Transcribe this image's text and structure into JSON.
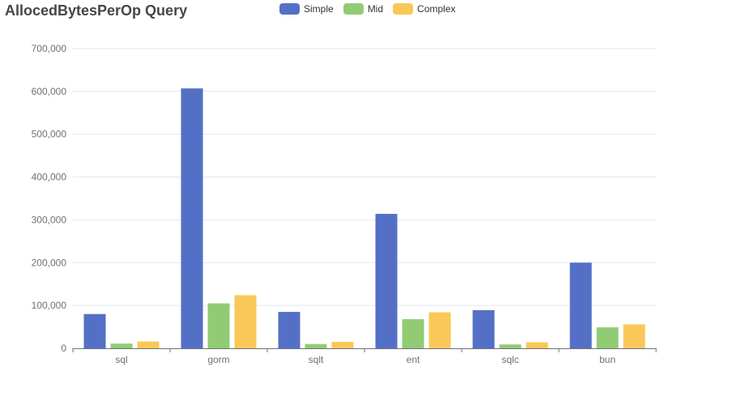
{
  "chart_data": {
    "type": "bar",
    "title": "AllocedBytesPerOp Query",
    "categories": [
      "sql",
      "gorm",
      "sqlt",
      "ent",
      "sqlc",
      "bun"
    ],
    "series": [
      {
        "name": "Simple",
        "color": "#5470c6",
        "values": [
          80000,
          607000,
          85000,
          314000,
          89000,
          200000
        ]
      },
      {
        "name": "Mid",
        "color": "#91cc75",
        "values": [
          11000,
          105000,
          10000,
          68000,
          9000,
          49000
        ]
      },
      {
        "name": "Complex",
        "color": "#fac858",
        "values": [
          16000,
          124000,
          15000,
          84000,
          14000,
          56000
        ]
      }
    ],
    "ylim": [
      0,
      700000
    ],
    "yticks": [
      "0",
      "100,000",
      "200,000",
      "300,000",
      "400,000",
      "500,000",
      "600,000",
      "700,000"
    ],
    "grid": true,
    "legend_position": "top"
  }
}
